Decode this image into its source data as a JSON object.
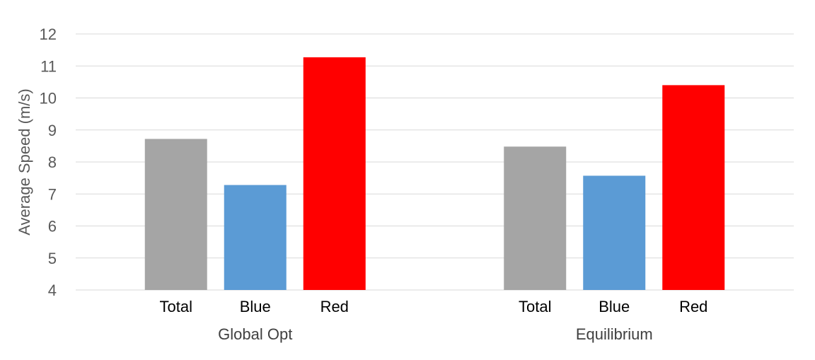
{
  "chart_data": {
    "type": "bar",
    "title": "",
    "ylabel": "Average Speed (m/s)",
    "xlabel": "",
    "ylim": [
      4,
      12
    ],
    "yticks": [
      4,
      5,
      6,
      7,
      8,
      9,
      10,
      11,
      12
    ],
    "grid": true,
    "legend": "none",
    "groups": [
      {
        "name": "Global Opt",
        "categories": [
          "Total",
          "Blue",
          "Red"
        ],
        "values": [
          8.72,
          7.28,
          11.27
        ]
      },
      {
        "name": "Equilibrium",
        "categories": [
          "Total",
          "Blue",
          "Red"
        ],
        "values": [
          8.48,
          7.57,
          10.4
        ]
      }
    ],
    "colors": {
      "Total": "#a5a5a5",
      "Blue": "#5b9bd5",
      "Red": "#ff0000"
    }
  }
}
